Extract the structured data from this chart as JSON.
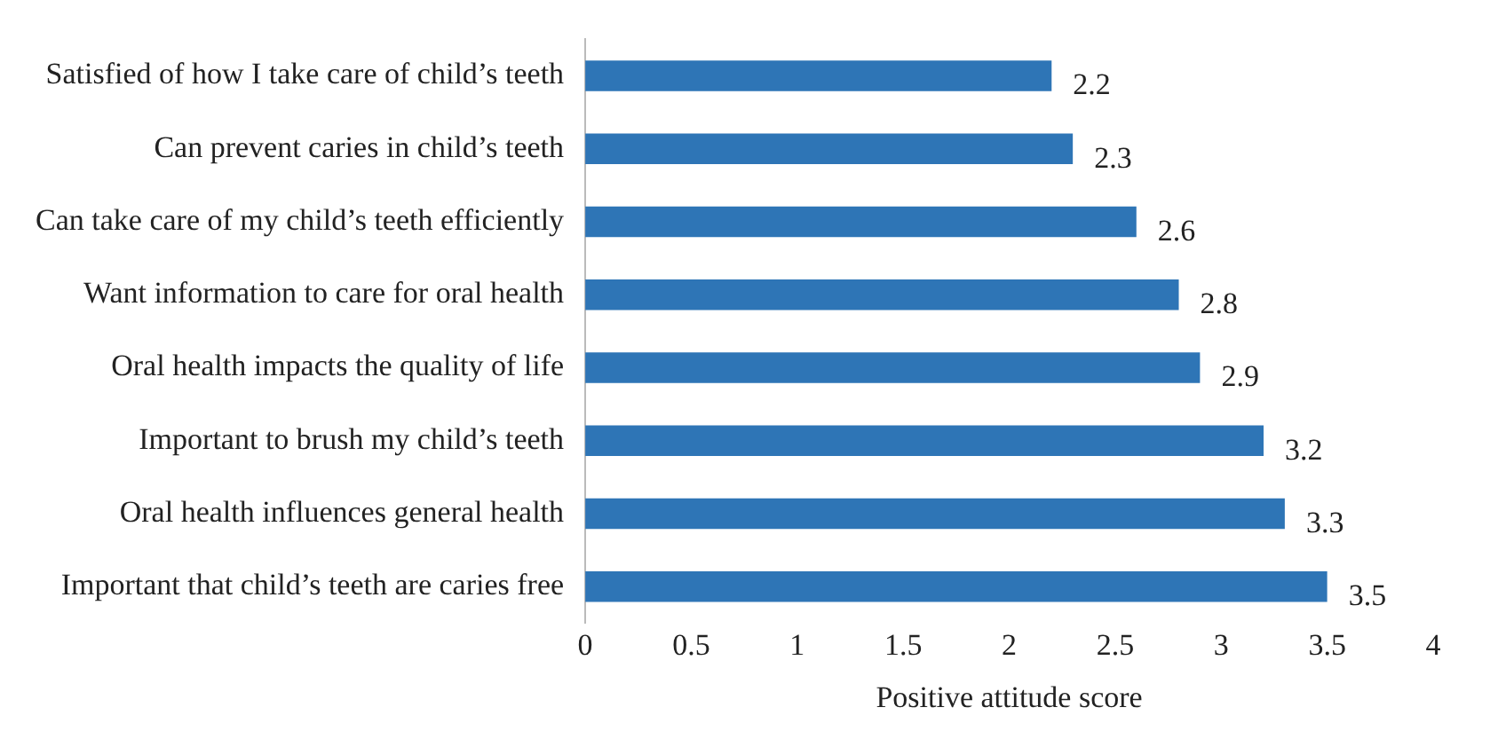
{
  "chart_data": {
    "type": "bar",
    "orientation": "horizontal",
    "xlabel": "Positive attitude score",
    "categories": [
      "Satisfied of how I take care of child’s teeth",
      "Can prevent caries in child’s teeth",
      "Can take care of my child’s teeth efficiently",
      "Want information to care for oral health",
      "Oral health impacts the quality of life",
      "Important to brush my child’s teeth",
      "Oral health influences general health",
      "Important that child’s teeth are caries free"
    ],
    "values": [
      2.2,
      2.3,
      2.6,
      2.8,
      2.9,
      3.2,
      3.3,
      3.5
    ],
    "color": "#2e75b6",
    "xlim": [
      0,
      4
    ],
    "xticks": [
      0,
      0.5,
      1,
      1.5,
      2,
      2.5,
      3,
      3.5,
      4
    ],
    "grid": false,
    "legend": false,
    "data_labels": true
  }
}
